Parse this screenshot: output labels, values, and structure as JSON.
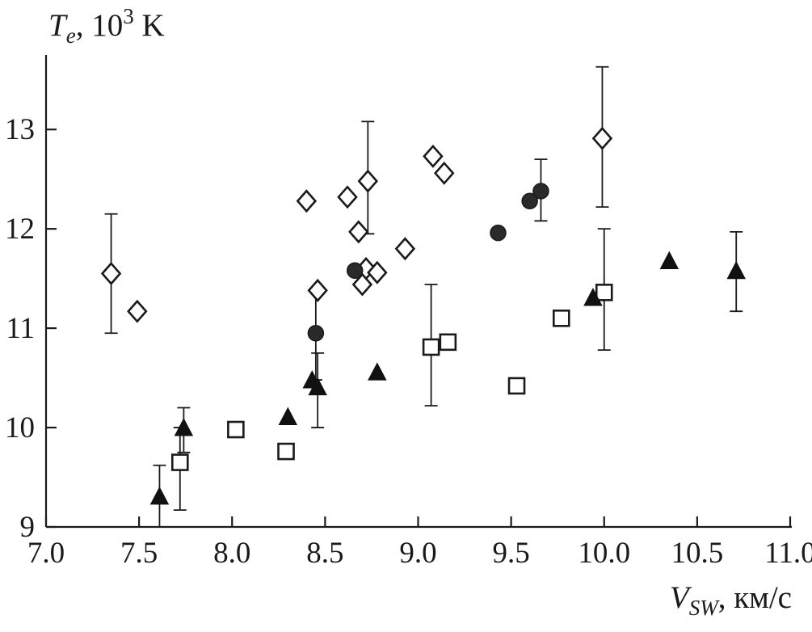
{
  "chart_data": {
    "type": "scatter",
    "title": "",
    "xlabel": "V_SW, км/с",
    "ylabel": "T_e, 10^3 K",
    "xlabel_parts": {
      "symbol": "V",
      "symbol_sub": "SW",
      "suffix": ", км/с"
    },
    "ylabel_parts": {
      "symbol": "T",
      "symbol_sub": "e",
      "suffix": ", 10",
      "exponent": "3",
      "unit": " K"
    },
    "xlim": [
      7.0,
      11.0
    ],
    "ylim": [
      9.0,
      13.75
    ],
    "xticks": [
      7.0,
      7.5,
      8.0,
      8.5,
      9.0,
      9.5,
      10.0,
      10.5,
      11.0
    ],
    "xtick_labels": [
      "7.0",
      "7.5",
      "8.0",
      "8.5",
      "9.0",
      "9.5",
      "10.0",
      "10.5",
      "11.0"
    ],
    "yticks": [
      9,
      10,
      11,
      12,
      13
    ],
    "ytick_labels": [
      "9",
      "10",
      "11",
      "12",
      "13"
    ],
    "grid": false,
    "legend": "none",
    "axis_color": "#1a1a1a",
    "series": [
      {
        "name": "open-diamonds",
        "marker": "diamond",
        "fill": "#ffffff",
        "stroke": "#1a1a1a",
        "points": [
          [
            7.35,
            11.55,
            10.95,
            12.15
          ],
          [
            7.49,
            11.17
          ],
          [
            8.4,
            12.28
          ],
          [
            8.62,
            12.32
          ],
          [
            8.73,
            12.48,
            11.95,
            13.08
          ],
          [
            8.68,
            11.97
          ],
          [
            8.72,
            11.6
          ],
          [
            8.78,
            11.56
          ],
          [
            8.7,
            11.44
          ],
          [
            8.46,
            11.38
          ],
          [
            8.93,
            11.8
          ],
          [
            9.08,
            12.73
          ],
          [
            9.14,
            12.56
          ],
          [
            9.99,
            12.91,
            12.22,
            13.63
          ]
        ]
      },
      {
        "name": "filled-circles",
        "marker": "circle",
        "fill": "#2a2a2a",
        "stroke": "#1a1a1a",
        "points": [
          [
            8.66,
            11.58
          ],
          [
            8.45,
            10.95,
            10.48,
            11.4
          ],
          [
            9.43,
            11.96
          ],
          [
            9.6,
            12.28
          ],
          [
            9.66,
            12.38,
            12.08,
            12.7
          ]
        ]
      },
      {
        "name": "open-squares",
        "marker": "square",
        "fill": "#ffffff",
        "stroke": "#1a1a1a",
        "points": [
          [
            7.72,
            9.65,
            9.17,
            10.0
          ],
          [
            8.02,
            9.98
          ],
          [
            8.29,
            9.76
          ],
          [
            9.07,
            10.81,
            10.22,
            11.44
          ],
          [
            9.16,
            10.86
          ],
          [
            9.53,
            10.42
          ],
          [
            9.77,
            11.1
          ],
          [
            10.0,
            11.36,
            10.78,
            12.0
          ]
        ]
      },
      {
        "name": "filled-triangles",
        "marker": "triangle",
        "fill": "#111111",
        "stroke": "#111111",
        "points": [
          [
            7.61,
            9.3,
            9.0,
            9.62
          ],
          [
            7.74,
            9.99,
            9.75,
            10.2
          ],
          [
            8.3,
            10.1
          ],
          [
            8.43,
            10.47
          ],
          [
            8.46,
            10.4,
            10.0,
            10.75
          ],
          [
            8.78,
            10.55
          ],
          [
            9.94,
            11.3
          ],
          [
            10.35,
            11.67
          ],
          [
            10.71,
            11.57,
            11.17,
            11.97
          ]
        ]
      }
    ]
  }
}
